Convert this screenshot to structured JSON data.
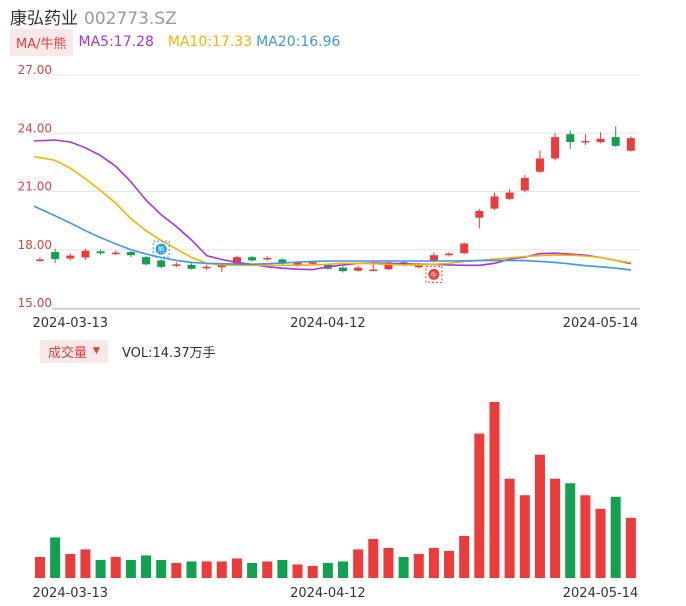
{
  "header": {
    "stock_name": "康弘药业",
    "stock_code": "002773.SZ"
  },
  "ma_bar": {
    "toggle_label": "MA/牛熊",
    "items": [
      {
        "text": "MA5:17.28",
        "color": "#a335ea"
      },
      {
        "text": "MA10:17.33",
        "color": "#f5b400"
      },
      {
        "text": "MA20:16.96",
        "color": "#3e97e8"
      }
    ]
  },
  "volume_bar": {
    "toggle_label": "成交量",
    "volume_text": "VOL:14.37万手"
  },
  "colors": {
    "up": "#ec3b3b",
    "down": "#12a150",
    "axis_label": "#e0413f",
    "grid": "#e6e6e6",
    "date_label": "#333333"
  },
  "chart_data": {
    "type": "candlestick",
    "price_axis": {
      "ylim": [
        15,
        27
      ],
      "ticks": [
        "27.00",
        "24.00",
        "21.00",
        "18.00",
        "15.00"
      ]
    },
    "date_ticks": [
      {
        "label": "2024-03-13",
        "index": 2
      },
      {
        "label": "2024-04-12",
        "index": 19
      },
      {
        "label": "2024-05-14",
        "index": 37
      }
    ],
    "candles": [
      {
        "o": 17.5,
        "c": 17.5,
        "h": 17.62,
        "l": 17.38
      },
      {
        "o": 17.88,
        "c": 17.52,
        "h": 18.05,
        "l": 17.32
      },
      {
        "o": 17.55,
        "c": 17.7,
        "h": 17.8,
        "l": 17.45
      },
      {
        "o": 17.6,
        "c": 17.95,
        "h": 18.05,
        "l": 17.48
      },
      {
        "o": 17.92,
        "c": 17.82,
        "h": 18.02,
        "l": 17.72
      },
      {
        "o": 17.8,
        "c": 17.85,
        "h": 17.95,
        "l": 17.72
      },
      {
        "o": 17.88,
        "c": 17.72,
        "h": 17.92,
        "l": 17.62
      },
      {
        "o": 17.62,
        "c": 17.25,
        "h": 17.68,
        "l": 17.2
      },
      {
        "o": 17.45,
        "c": 17.12,
        "h": 17.52,
        "l": 17.05
      },
      {
        "o": 17.18,
        "c": 17.25,
        "h": 17.35,
        "l": 17.1
      },
      {
        "o": 17.22,
        "c": 17.02,
        "h": 17.3,
        "l": 16.98
      },
      {
        "o": 17.05,
        "c": 17.12,
        "h": 17.25,
        "l": 16.95
      },
      {
        "o": 17.1,
        "c": 17.22,
        "h": 17.3,
        "l": 16.85
      },
      {
        "o": 17.25,
        "c": 17.62,
        "h": 17.7,
        "l": 17.2
      },
      {
        "o": 17.62,
        "c": 17.45,
        "h": 17.68,
        "l": 17.4
      },
      {
        "o": 17.5,
        "c": 17.58,
        "h": 17.68,
        "l": 17.42
      },
      {
        "o": 17.5,
        "c": 17.28,
        "h": 17.55,
        "l": 17.22
      },
      {
        "o": 17.22,
        "c": 17.35,
        "h": 17.42,
        "l": 17.12
      },
      {
        "o": 17.3,
        "c": 17.35,
        "h": 17.42,
        "l": 17.22
      },
      {
        "o": 17.22,
        "c": 17.02,
        "h": 17.28,
        "l": 16.98
      },
      {
        "o": 17.08,
        "c": 16.9,
        "h": 17.15,
        "l": 16.82
      },
      {
        "o": 16.92,
        "c": 17.08,
        "h": 17.18,
        "l": 16.88
      },
      {
        "o": 16.95,
        "c": 16.98,
        "h": 17.4,
        "l": 16.9
      },
      {
        "o": 17.0,
        "c": 17.35,
        "h": 17.42,
        "l": 16.95
      },
      {
        "o": 17.35,
        "c": 17.22,
        "h": 17.42,
        "l": 17.15
      },
      {
        "o": 17.1,
        "c": 17.25,
        "h": 17.32,
        "l": 17.05
      },
      {
        "o": 17.4,
        "c": 17.72,
        "h": 17.85,
        "l": 17.35
      },
      {
        "o": 17.72,
        "c": 17.8,
        "h": 17.88,
        "l": 17.65
      },
      {
        "o": 17.82,
        "c": 18.32,
        "h": 18.38,
        "l": 17.78
      },
      {
        "o": 19.65,
        "c": 20.0,
        "h": 20.1,
        "l": 19.1
      },
      {
        "o": 20.12,
        "c": 20.75,
        "h": 20.95,
        "l": 20.05
      },
      {
        "o": 20.62,
        "c": 20.95,
        "h": 21.12,
        "l": 20.55
      },
      {
        "o": 21.05,
        "c": 21.7,
        "h": 21.85,
        "l": 20.95
      },
      {
        "o": 22.02,
        "c": 22.7,
        "h": 23.1,
        "l": 21.95
      },
      {
        "o": 22.7,
        "c": 23.8,
        "h": 24.0,
        "l": 22.6
      },
      {
        "o": 23.95,
        "c": 23.55,
        "h": 24.15,
        "l": 23.2
      },
      {
        "o": 23.55,
        "c": 23.6,
        "h": 23.95,
        "l": 23.4
      },
      {
        "o": 23.55,
        "c": 23.72,
        "h": 24.05,
        "l": 23.48
      },
      {
        "o": 23.8,
        "c": 23.35,
        "h": 24.35,
        "l": 23.3
      },
      {
        "o": 23.1,
        "c": 23.75,
        "h": 23.85,
        "l": 23.05
      }
    ],
    "ma_lines": [
      {
        "name": "MA5",
        "color": "#a335ea",
        "points": [
          [
            -0.4,
            23.6
          ],
          [
            1,
            23.65
          ],
          [
            2,
            23.55
          ],
          [
            3,
            23.25
          ],
          [
            4,
            22.85
          ],
          [
            5,
            22.3
          ],
          [
            6,
            21.5
          ],
          [
            7,
            20.55
          ],
          [
            8,
            19.8
          ],
          [
            9,
            19.2
          ],
          [
            10,
            18.5
          ],
          [
            11,
            17.7
          ],
          [
            12,
            17.5
          ],
          [
            13,
            17.35
          ],
          [
            14,
            17.25
          ],
          [
            15,
            17.12
          ],
          [
            16,
            17.05
          ],
          [
            17,
            17.0
          ],
          [
            18,
            16.98
          ],
          [
            19,
            17.12
          ],
          [
            20,
            17.22
          ],
          [
            21,
            17.3
          ],
          [
            22,
            17.32
          ],
          [
            23,
            17.3
          ],
          [
            24,
            17.28
          ],
          [
            25,
            17.25
          ],
          [
            26,
            17.25
          ],
          [
            27,
            17.22
          ],
          [
            28,
            17.2
          ],
          [
            29,
            17.2
          ],
          [
            30,
            17.3
          ],
          [
            31,
            17.52
          ],
          [
            32,
            17.62
          ],
          [
            33,
            17.8
          ],
          [
            34,
            17.82
          ],
          [
            35,
            17.78
          ],
          [
            36,
            17.72
          ],
          [
            37,
            17.6
          ],
          [
            38,
            17.45
          ],
          [
            39,
            17.28
          ]
        ]
      },
      {
        "name": "MA10",
        "color": "#f5b400",
        "points": [
          [
            -0.4,
            22.8
          ],
          [
            1,
            22.6
          ],
          [
            2,
            22.2
          ],
          [
            3,
            21.65
          ],
          [
            4,
            21.05
          ],
          [
            5,
            20.4
          ],
          [
            6,
            19.6
          ],
          [
            7,
            18.98
          ],
          [
            8,
            18.48
          ],
          [
            9,
            18.05
          ],
          [
            10,
            17.6
          ],
          [
            11,
            17.3
          ],
          [
            12,
            17.22
          ],
          [
            13,
            17.2
          ],
          [
            14,
            17.2
          ],
          [
            15,
            17.2
          ],
          [
            16,
            17.2
          ],
          [
            17,
            17.2
          ],
          [
            18,
            17.22
          ],
          [
            19,
            17.25
          ],
          [
            20,
            17.3
          ],
          [
            21,
            17.3
          ],
          [
            22,
            17.28
          ],
          [
            23,
            17.25
          ],
          [
            24,
            17.22
          ],
          [
            25,
            17.22
          ],
          [
            26,
            17.25
          ],
          [
            27,
            17.3
          ],
          [
            28,
            17.4
          ],
          [
            29,
            17.45
          ],
          [
            30,
            17.52
          ],
          [
            31,
            17.58
          ],
          [
            32,
            17.65
          ],
          [
            33,
            17.7
          ],
          [
            34,
            17.72
          ],
          [
            35,
            17.72
          ],
          [
            36,
            17.68
          ],
          [
            37,
            17.6
          ],
          [
            38,
            17.45
          ],
          [
            39,
            17.33
          ]
        ]
      },
      {
        "name": "MA20",
        "color": "#3e97e8",
        "points": [
          [
            -0.4,
            20.25
          ],
          [
            1,
            19.75
          ],
          [
            2,
            19.38
          ],
          [
            3,
            18.98
          ],
          [
            4,
            18.62
          ],
          [
            5,
            18.3
          ],
          [
            6,
            18.0
          ],
          [
            7,
            17.78
          ],
          [
            8,
            17.6
          ],
          [
            9,
            17.45
          ],
          [
            10,
            17.35
          ],
          [
            11,
            17.3
          ],
          [
            12,
            17.28
          ],
          [
            13,
            17.26
          ],
          [
            14,
            17.25
          ],
          [
            15,
            17.28
          ],
          [
            16,
            17.32
          ],
          [
            17,
            17.36
          ],
          [
            18,
            17.4
          ],
          [
            19,
            17.42
          ],
          [
            20,
            17.42
          ],
          [
            21,
            17.42
          ],
          [
            22,
            17.42
          ],
          [
            23,
            17.42
          ],
          [
            24,
            17.42
          ],
          [
            25,
            17.42
          ],
          [
            26,
            17.42
          ],
          [
            27,
            17.42
          ],
          [
            28,
            17.43
          ],
          [
            29,
            17.44
          ],
          [
            30,
            17.45
          ],
          [
            31,
            17.45
          ],
          [
            32,
            17.44
          ],
          [
            33,
            17.4
          ],
          [
            34,
            17.35
          ],
          [
            35,
            17.27
          ],
          [
            36,
            17.18
          ],
          [
            37,
            17.12
          ],
          [
            38,
            17.05
          ],
          [
            39,
            16.96
          ]
        ]
      }
    ],
    "volumes": [
      14,
      27,
      16,
      19,
      12,
      14,
      12,
      15,
      12,
      10,
      11,
      11,
      11,
      13,
      10,
      11,
      12,
      9,
      8,
      10,
      11,
      19,
      26,
      20,
      14,
      16,
      20,
      18,
      28,
      96,
      117,
      66,
      55,
      82,
      66,
      63,
      55,
      46,
      54,
      40
    ],
    "volume_max": 117,
    "markers": [
      {
        "type": "bear",
        "index": 8,
        "label": "熊",
        "color": "#1f9ee6"
      },
      {
        "type": "bull",
        "index": 26,
        "label": "牛",
        "color": "#ec3b3b"
      }
    ]
  }
}
